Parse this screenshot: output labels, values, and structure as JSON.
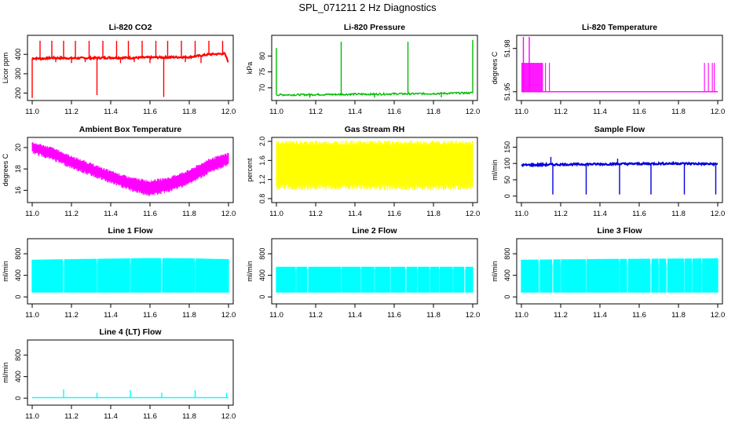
{
  "page_title": "SPL_071211  2 Hz Diagnostics",
  "chart_data": [
    {
      "id": "co2",
      "type": "line",
      "title": "Li-820 CO2",
      "xlabel": "",
      "ylabel": "Licor ppm",
      "color": "#ff0000",
      "xlim": [
        11.0,
        12.0
      ],
      "ylim": [
        170,
        490
      ],
      "yticks": [
        200,
        300,
        400
      ],
      "xticks": [
        "11.0",
        "11.2",
        "11.4",
        "11.6",
        "11.8",
        "12.0"
      ],
      "series": [
        {
          "x": [
            11.0,
            11.05,
            11.1,
            11.2,
            11.3,
            11.4,
            11.5,
            11.6,
            11.7,
            11.8,
            11.85,
            11.9,
            11.95,
            11.98,
            12.0
          ],
          "y": [
            380,
            378,
            382,
            380,
            381,
            383,
            382,
            384,
            385,
            386,
            392,
            400,
            402,
            404,
            360
          ]
        }
      ],
      "spikes_up": [
        [
          11.04,
          470
        ],
        [
          11.1,
          470
        ],
        [
          11.16,
          470
        ],
        [
          11.22,
          470
        ],
        [
          11.29,
          470
        ],
        [
          11.36,
          470
        ],
        [
          11.43,
          470
        ],
        [
          11.49,
          470
        ],
        [
          11.56,
          470
        ],
        [
          11.63,
          470
        ],
        [
          11.69,
          470
        ],
        [
          11.76,
          470
        ],
        [
          11.83,
          470
        ],
        [
          11.9,
          470
        ],
        [
          11.97,
          470
        ]
      ],
      "spikes_down": [
        [
          11.0,
          175
        ],
        [
          11.33,
          190
        ],
        [
          11.67,
          180
        ],
        [
          11.12,
          360
        ],
        [
          11.2,
          355
        ],
        [
          11.27,
          360
        ],
        [
          11.45,
          355
        ],
        [
          11.52,
          360
        ],
        [
          11.6,
          355
        ],
        [
          11.78,
          360
        ],
        [
          11.86,
          355
        ]
      ]
    },
    {
      "id": "pressure",
      "type": "line",
      "title": "Li-820 Pressure",
      "xlabel": "",
      "ylabel": "kPa",
      "color": "#00bb00",
      "xlim": [
        11.0,
        12.0
      ],
      "ylim": [
        66.5,
        86
      ],
      "yticks": [
        70,
        75,
        80
      ],
      "xticks": [
        "11.0",
        "11.2",
        "11.4",
        "11.6",
        "11.8",
        "12.0"
      ],
      "series": [
        {
          "x": [
            11.0,
            11.1,
            11.2,
            11.3,
            11.4,
            11.5,
            11.6,
            11.7,
            11.8,
            11.9,
            12.0
          ],
          "y": [
            67.8,
            67.8,
            67.9,
            67.9,
            68.0,
            68.0,
            68.1,
            68.1,
            68.2,
            68.3,
            68.4
          ]
        }
      ],
      "spikes_up": [
        [
          11.0,
          82.5
        ],
        [
          11.33,
          84.5
        ],
        [
          11.67,
          84.5
        ],
        [
          12.0,
          85.0
        ]
      ],
      "spikes_down": [
        [
          11.17,
          66.9
        ],
        [
          11.5,
          66.9
        ],
        [
          11.84,
          67.0
        ]
      ]
    },
    {
      "id": "licor-temp",
      "type": "line",
      "title": "Li-820 Temperature",
      "xlabel": "",
      "ylabel": "degrees C",
      "color": "#ff00ff",
      "xlim": [
        11.0,
        12.0
      ],
      "ylim": [
        51.945,
        51.988
      ],
      "yticks": [
        51.95,
        51.98
      ],
      "xticks": [
        "11.0",
        "11.2",
        "11.4",
        "11.6",
        "11.8",
        "12.0"
      ],
      "series": [
        {
          "x": [
            11.0,
            12.0
          ],
          "y": [
            51.95,
            51.95
          ]
        }
      ],
      "toggle_level": 51.97,
      "toggle_blocks": [
        [
          11.0,
          11.11
        ],
        [
          11.12,
          11.125
        ],
        [
          11.14,
          11.145
        ],
        [
          11.93,
          11.935
        ],
        [
          11.95,
          11.955
        ],
        [
          11.97,
          11.975
        ],
        [
          11.98,
          11.985
        ]
      ],
      "spikes_up": [
        [
          11.01,
          51.988
        ],
        [
          11.04,
          51.988
        ]
      ]
    },
    {
      "id": "box-temp",
      "type": "line",
      "title": "Ambient Box Temperature",
      "xlabel": "",
      "ylabel": "degrees C",
      "color": "#ff00ff",
      "xlim": [
        11.0,
        12.0
      ],
      "ylim": [
        15.0,
        20.8
      ],
      "yticks": [
        16,
        18,
        20
      ],
      "xticks": [
        "11.0",
        "11.2",
        "11.4",
        "11.6",
        "11.8",
        "12.0"
      ],
      "band": {
        "x": [
          11.0,
          11.1,
          11.2,
          11.3,
          11.4,
          11.5,
          11.6,
          11.7,
          11.8,
          11.9,
          12.0
        ],
        "high": [
          20.4,
          19.9,
          19.1,
          18.4,
          17.7,
          17.1,
          16.8,
          17.1,
          17.8,
          18.8,
          19.4
        ],
        "low": [
          19.7,
          19.1,
          18.3,
          17.6,
          16.9,
          16.2,
          15.7,
          16.1,
          16.8,
          17.8,
          18.6
        ]
      },
      "noise": 0.6
    },
    {
      "id": "rh",
      "type": "line",
      "title": "Gas Stream RH",
      "xlabel": "",
      "ylabel": "percent",
      "color": "#ffff00",
      "xlim": [
        11.0,
        12.0
      ],
      "ylim": [
        0.75,
        2.05
      ],
      "yticks": [
        0.8,
        1.2,
        1.6,
        2.0
      ],
      "yticklabels": [
        "0.8",
        "1.2",
        "1.6",
        "2.0"
      ],
      "xticks": [
        "11.0",
        "11.2",
        "11.4",
        "11.6",
        "11.8",
        "12.0"
      ],
      "band": {
        "x": [
          11.0,
          12.0
        ],
        "high": [
          1.95,
          1.95
        ],
        "low": [
          1.1,
          1.1
        ]
      },
      "noise": 0.25
    },
    {
      "id": "sample-flow",
      "type": "line",
      "title": "Sample Flow",
      "xlabel": "",
      "ylabel": "ml/min",
      "color": "#0000dd",
      "xlim": [
        11.0,
        12.0
      ],
      "ylim": [
        -15,
        175
      ],
      "yticks": [
        0,
        50,
        100,
        150
      ],
      "xticks": [
        "11.0",
        "11.2",
        "11.4",
        "11.6",
        "11.8",
        "12.0"
      ],
      "series": [
        {
          "x": [
            11.0,
            11.2,
            11.4,
            11.6,
            11.8,
            12.0
          ],
          "y": [
            95,
            97,
            98,
            99,
            100,
            98
          ]
        }
      ],
      "spikes_down": [
        [
          11.16,
          5
        ],
        [
          11.33,
          5
        ],
        [
          11.5,
          5
        ],
        [
          11.66,
          5
        ],
        [
          11.83,
          5
        ],
        [
          11.99,
          5
        ]
      ],
      "spikes_up": [
        [
          11.15,
          120
        ],
        [
          11.49,
          115
        ]
      ]
    },
    {
      "id": "line1",
      "type": "area",
      "title": "Line 1 Flow",
      "xlabel": "",
      "ylabel": "ml/min",
      "color": "#00ffff",
      "xlim": [
        11.0,
        12.0
      ],
      "ylim": [
        -100,
        1050
      ],
      "yticks": [
        0,
        400,
        800
      ],
      "xticks": [
        "11.0",
        "11.2",
        "11.4",
        "11.6",
        "11.8",
        "12.0"
      ],
      "band": {
        "x": [
          11.0,
          11.2,
          11.4,
          11.6,
          11.8,
          12.0
        ],
        "high": [
          690,
          700,
          710,
          720,
          715,
          700
        ],
        "low": [
          80,
          80,
          80,
          80,
          80,
          80
        ]
      },
      "gaps": [
        11.16,
        11.33,
        11.5,
        11.66,
        11.83
      ]
    },
    {
      "id": "line2",
      "type": "area",
      "title": "Line 2 Flow",
      "xlabel": "",
      "ylabel": "ml/min",
      "color": "#00ffff",
      "xlim": [
        11.0,
        12.0
      ],
      "ylim": [
        -100,
        1050
      ],
      "yticks": [
        0,
        400,
        800
      ],
      "xticks": [
        "11.0",
        "11.2",
        "11.4",
        "11.6",
        "11.8",
        "12.0"
      ],
      "band": {
        "x": [
          11.0,
          12.0
        ],
        "high": [
          560,
          560
        ],
        "low": [
          80,
          80
        ]
      },
      "gaps": [
        11.1,
        11.16,
        11.33,
        11.43,
        11.5,
        11.58,
        11.66,
        11.72,
        11.78,
        11.83,
        11.9,
        11.96
      ]
    },
    {
      "id": "line3",
      "type": "area",
      "title": "Line 3 Flow",
      "xlabel": "",
      "ylabel": "ml/min",
      "color": "#00ffff",
      "xlim": [
        11.0,
        12.0
      ],
      "ylim": [
        -100,
        1050
      ],
      "yticks": [
        0,
        400,
        800
      ],
      "xticks": [
        "11.0",
        "11.2",
        "11.4",
        "11.6",
        "11.8",
        "12.0"
      ],
      "band": {
        "x": [
          11.0,
          11.5,
          12.0
        ],
        "high": [
          690,
          705,
          715
        ],
        "low": [
          80,
          80,
          80
        ]
      },
      "gaps": [
        11.09,
        11.16,
        11.2,
        11.33,
        11.5,
        11.54,
        11.66,
        11.7,
        11.74,
        11.83,
        11.87,
        11.92
      ]
    },
    {
      "id": "line4",
      "type": "line",
      "title": "Line 4 (LT) Flow",
      "xlabel": "",
      "ylabel": "ml/min",
      "color": "#00ffff",
      "xlim": [
        11.0,
        12.0
      ],
      "ylim": [
        -100,
        1050
      ],
      "yticks": [
        0,
        400,
        800
      ],
      "xticks": [
        "11.0",
        "11.2",
        "11.4",
        "11.6",
        "11.8",
        "12.0"
      ],
      "series": [
        {
          "x": [
            11.0,
            12.0
          ],
          "y": [
            10,
            10
          ]
        }
      ],
      "spikes_up": [
        [
          11.16,
          160
        ],
        [
          11.33,
          100
        ],
        [
          11.5,
          150
        ],
        [
          11.66,
          100
        ],
        [
          11.83,
          150
        ],
        [
          11.99,
          100
        ]
      ]
    }
  ]
}
